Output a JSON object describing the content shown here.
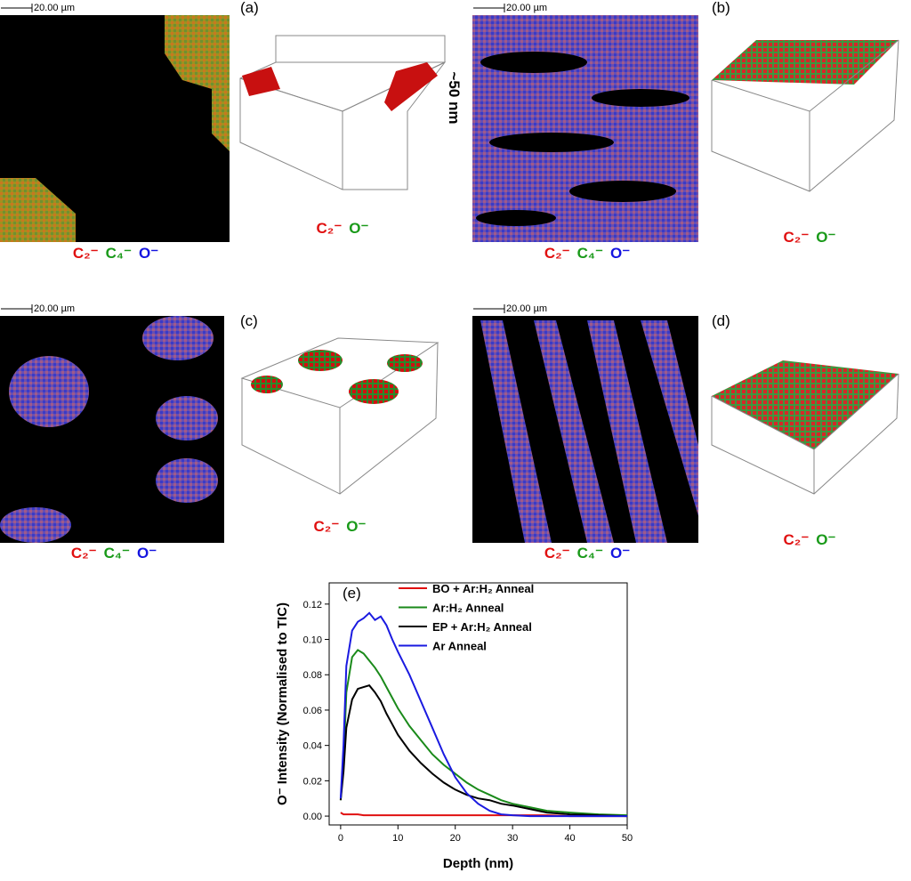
{
  "panels": [
    {
      "label": "(a)",
      "scale_bar": "20.00 µm",
      "map_ions": [
        "C₂⁻",
        "C₄⁻",
        "O⁻"
      ],
      "depth_ions": [
        "C₂⁻",
        "O⁻"
      ],
      "depth_label": "~50 nm"
    },
    {
      "label": "(b)",
      "scale_bar": "20.00 µm",
      "map_ions": [
        "C₂⁻",
        "C₄⁻",
        "O⁻"
      ],
      "depth_ions": [
        "C₂⁻",
        "O⁻"
      ]
    },
    {
      "label": "(c)",
      "scale_bar": "20.00 µm",
      "map_ions": [
        "C₂⁻",
        "C₄⁻",
        "O⁻"
      ],
      "depth_ions": [
        "C₂⁻",
        "O⁻"
      ]
    },
    {
      "label": "(d)",
      "scale_bar": "20.00 µm",
      "map_ions": [
        "C₂⁻",
        "C₄⁻",
        "O⁻"
      ],
      "depth_ions": [
        "C₂⁻",
        "O⁻"
      ]
    }
  ],
  "chart_data": {
    "type": "line",
    "panel_label": "(e)",
    "x_label": "Depth (nm)",
    "y_label": "O⁻ Intensity (Normalised to TIC)",
    "x": [
      0,
      0.5,
      1,
      2,
      3,
      4,
      5,
      6,
      7,
      8,
      9,
      10,
      12,
      14,
      16,
      18,
      20,
      22,
      24,
      26,
      28,
      30,
      33,
      36,
      40,
      45,
      50
    ],
    "series": [
      {
        "name": "BO + Ar:H₂ Anneal",
        "color": "#e01010",
        "values": [
          0.002,
          0.001,
          0.001,
          0.001,
          0.001,
          0.0005,
          0.0005,
          0.0005,
          0.0005,
          0.0005,
          0.0005,
          0.0005,
          0.0005,
          0.0005,
          0.0005,
          0.0005,
          0.0005,
          0.0005,
          0.0005,
          0.0005,
          0.0005,
          0.0005,
          0.0005,
          0.0005,
          0,
          0,
          0
        ]
      },
      {
        "name": "Ar:H₂ Anneal",
        "color": "#1a8a1a",
        "values": [
          0.009,
          0.03,
          0.07,
          0.09,
          0.094,
          0.092,
          0.088,
          0.084,
          0.079,
          0.073,
          0.067,
          0.061,
          0.051,
          0.043,
          0.035,
          0.029,
          0.024,
          0.019,
          0.015,
          0.012,
          0.009,
          0.007,
          0.005,
          0.003,
          0.002,
          0.001,
          0.0005
        ]
      },
      {
        "name": "EP + Ar:H₂ Anneal",
        "color": "#000000",
        "values": [
          0.009,
          0.025,
          0.05,
          0.066,
          0.072,
          0.073,
          0.074,
          0.07,
          0.065,
          0.058,
          0.052,
          0.046,
          0.037,
          0.03,
          0.024,
          0.019,
          0.015,
          0.012,
          0.01,
          0.009,
          0.007,
          0.006,
          0.004,
          0.002,
          0.001,
          0.0005,
          0
        ]
      },
      {
        "name": "Ar Anneal",
        "color": "#1a1ae0",
        "values": [
          0.01,
          0.04,
          0.085,
          0.105,
          0.11,
          0.112,
          0.115,
          0.111,
          0.113,
          0.108,
          0.1,
          0.093,
          0.08,
          0.065,
          0.05,
          0.035,
          0.022,
          0.013,
          0.007,
          0.003,
          0.001,
          0.0005,
          0,
          0,
          0,
          0,
          0
        ]
      }
    ],
    "xlim": [
      -2,
      50
    ],
    "ylim": [
      -0.005,
      0.132
    ],
    "xticks": [
      0,
      10,
      20,
      30,
      40,
      50
    ],
    "yticks": [
      {
        "value": 0,
        "label": "0.00"
      },
      {
        "value": 0.02,
        "label": "0.02"
      },
      {
        "value": 0.04,
        "label": "0.04"
      },
      {
        "value": 0.06,
        "label": "0.06"
      },
      {
        "value": 0.08,
        "label": "0.08"
      },
      {
        "value": 0.1,
        "label": "0.10"
      },
      {
        "value": 0.12,
        "label": "0.12"
      }
    ],
    "legend": "upper left"
  }
}
